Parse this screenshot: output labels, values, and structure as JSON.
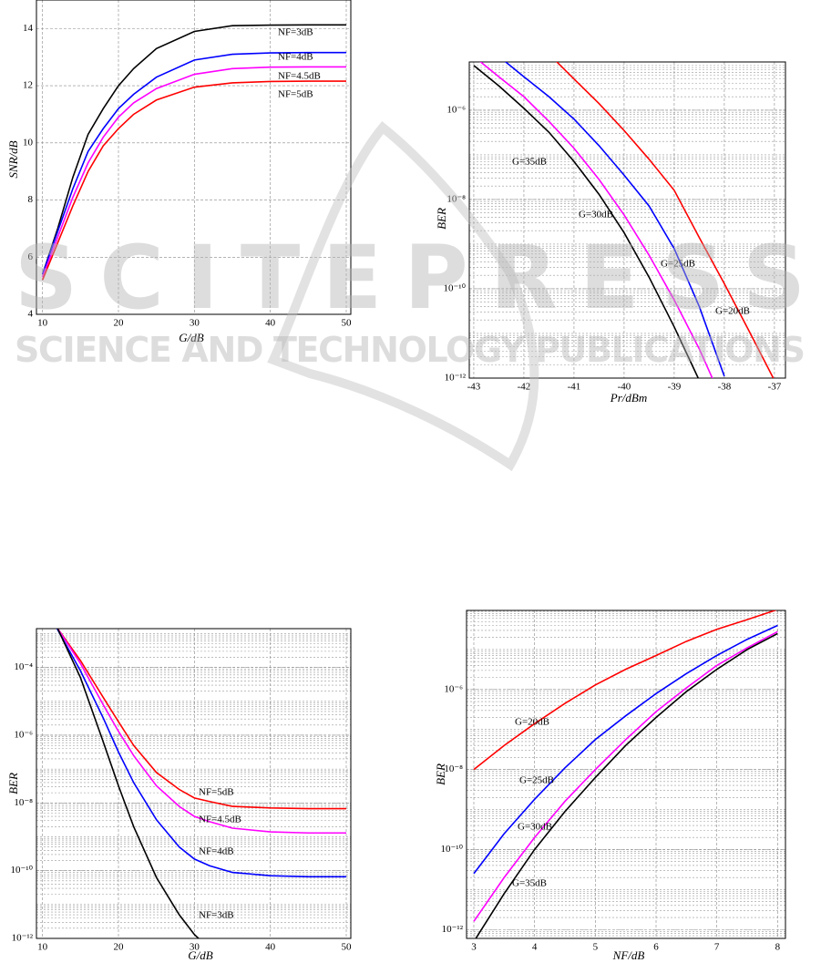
{
  "chart_data": [
    {
      "type": "line",
      "x_label": "G/dB",
      "y_label": "SNR/dB",
      "x": [
        10,
        12,
        14,
        16,
        18,
        20,
        22,
        25,
        30,
        35,
        40,
        45,
        50
      ],
      "xlim": [
        9.2,
        50.6
      ],
      "xticks": [
        10,
        20,
        30,
        40,
        50
      ],
      "ylim": [
        4,
        15
      ],
      "yticks": [
        4,
        6,
        8,
        10,
        12,
        14
      ],
      "grid": true,
      "log_y": false,
      "series": [
        {
          "name": "NF=3dB",
          "color": "#000000",
          "values": [
            5.4,
            7.0,
            8.8,
            10.3,
            11.2,
            12.0,
            12.6,
            13.3,
            13.9,
            14.1,
            14.12,
            14.13,
            14.13
          ]
        },
        {
          "name": "NF=4dB",
          "color": "#0000ff",
          "values": [
            5.4,
            6.9,
            8.4,
            9.7,
            10.5,
            11.2,
            11.7,
            12.3,
            12.9,
            13.1,
            13.15,
            13.16,
            13.16
          ]
        },
        {
          "name": "NF=4.5dB",
          "color": "#ff00ff",
          "values": [
            5.3,
            6.7,
            8.1,
            9.3,
            10.2,
            10.9,
            11.4,
            11.9,
            12.4,
            12.6,
            12.65,
            12.66,
            12.66
          ]
        },
        {
          "name": "NF=5dB",
          "color": "#ff0000",
          "values": [
            5.2,
            6.5,
            7.8,
            9.0,
            9.9,
            10.5,
            11.0,
            11.5,
            11.95,
            12.1,
            12.15,
            12.16,
            12.16
          ]
        }
      ]
    },
    {
      "type": "line",
      "x_label": "Pr/dBm",
      "y_label": "BER",
      "x": [
        -43,
        -42.5,
        -42,
        -41.5,
        -41,
        -40.5,
        -40,
        -39.5,
        -39,
        -38.5,
        -38,
        -37.5,
        -37
      ],
      "xlim": [
        -43.09,
        -36.78
      ],
      "xticks": [
        -43,
        -42,
        -41,
        -40,
        -39,
        -38,
        -37
      ],
      "ylim": [
        1e-12,
        1.2e-05
      ],
      "log_y": true,
      "grid": true,
      "yticks": [
        {
          "value": 1e-06,
          "label": "10⁻⁶"
        },
        {
          "value": 1e-08,
          "label": "10⁻⁸"
        },
        {
          "value": 1e-10,
          "label": "10⁻¹⁰"
        },
        {
          "value": 1e-12,
          "label": "10⁻¹²"
        }
      ],
      "series": [
        {
          "name": "G=35dB",
          "color": "#000000",
          "values": [
            1e-05,
            3.5e-06,
            1.1e-06,
            3.2e-07,
            7.1e-08,
            1.3e-08,
            1.8e-09,
            1.8e-10,
            1.4e-11,
            8.9e-13,
            null,
            null,
            null
          ]
        },
        {
          "name": "G=30dB",
          "color": "#ff00ff",
          "values": [
            1.6e-05,
            5.6e-06,
            2e-06,
            5.6e-07,
            1.4e-07,
            2.8e-08,
            4.5e-09,
            5.6e-10,
            5.6e-11,
            4.5e-12,
            2.5e-13,
            null,
            null
          ]
        },
        {
          "name": "G=25dB",
          "color": "#0000ff",
          "values": [
            null,
            1.6e-05,
            5.6e-06,
            2e-06,
            6.3e-07,
            1.6e-07,
            3.5e-08,
            7.1e-09,
            7.9e-10,
            4e-11,
            1.1e-12,
            null,
            null
          ]
        },
        {
          "name": "G=20dB",
          "color": "#ff0000",
          "values": [
            null,
            null,
            null,
            1.8e-05,
            5e-06,
            1.4e-06,
            3.5e-07,
            7.9e-08,
            1.6e-08,
            1.4e-09,
            1.3e-10,
            1.1e-11,
            8.9e-13
          ]
        }
      ]
    },
    {
      "type": "line",
      "x_label": "G/dB",
      "y_label": "BER",
      "x": [
        11,
        12,
        15,
        18,
        20,
        22,
        25,
        28,
        30,
        32,
        35,
        40,
        45,
        50
      ],
      "xlim": [
        9.2,
        50.6
      ],
      "xticks": [
        10,
        20,
        30,
        40,
        50
      ],
      "ylim": [
        1e-12,
        0.0014
      ],
      "log_y": true,
      "grid": true,
      "yticks": [
        {
          "value": 0.0001,
          "label": "10⁻⁴"
        },
        {
          "value": 1e-06,
          "label": "10⁻⁶"
        },
        {
          "value": 1e-08,
          "label": "10⁻⁸"
        },
        {
          "value": 1e-10,
          "label": "10⁻¹⁰"
        },
        {
          "value": 1e-12,
          "label": "10⁻¹²"
        }
      ],
      "series": [
        {
          "name": "NF=5dB",
          "color": "#ff0000",
          "values": [
            0.0035,
            0.0014,
            0.00016,
            1.3e-05,
            2.5e-06,
            5e-07,
            7.9e-08,
            2.5e-08,
            1.4e-08,
            1.1e-08,
            7.9e-09,
            7.1e-09,
            6.8e-09,
            6.8e-09
          ]
        },
        {
          "name": "NF=4.5dB",
          "color": "#ff00ff",
          "values": [
            0.0035,
            0.0014,
            0.00013,
            7.9e-06,
            1.3e-06,
            2.5e-07,
            3.2e-08,
            7.9e-09,
            4e-09,
            2.8e-09,
            1.8e-09,
            1.4e-09,
            1.3e-09,
            1.3e-09
          ]
        },
        {
          "name": "NF=4dB",
          "color": "#0000ff",
          "values": [
            0.0035,
            0.0013,
            7.9e-05,
            3.2e-06,
            3.2e-07,
            4e-08,
            3.2e-09,
            5e-10,
            2.2e-10,
            1.4e-10,
            8.9e-11,
            7.1e-11,
            6.6e-11,
            6.6e-11
          ]
        },
        {
          "name": "NF=3dB",
          "color": "#000000",
          "values": [
            0.004,
            0.0014,
            5e-05,
            6.3e-07,
            3.2e-08,
            2e-09,
            6.3e-11,
            5e-12,
            1.3e-12,
            5e-13,
            null,
            null,
            null,
            null
          ]
        }
      ]
    },
    {
      "type": "line",
      "x_label": "NF/dB",
      "y_label": "BER",
      "x": [
        3,
        3.5,
        4,
        4.5,
        5,
        5.5,
        6,
        6.5,
        7,
        7.5,
        8
      ],
      "xlim": [
        2.88,
        8.13
      ],
      "xticks": [
        3,
        4,
        5,
        6,
        7,
        8
      ],
      "ylim": [
        6e-13,
        9.5e-05
      ],
      "log_y": true,
      "grid": true,
      "yticks": [
        {
          "value": 1e-06,
          "label": "10⁻⁶"
        },
        {
          "value": 1e-08,
          "label": "10⁻⁸"
        },
        {
          "value": 1e-10,
          "label": "10⁻¹⁰"
        },
        {
          "value": 1e-12,
          "label": "10⁻¹²"
        }
      ],
      "series": [
        {
          "name": "G=20dB",
          "color": "#ff0000",
          "values": [
            1e-08,
            4e-08,
            1.4e-07,
            4.5e-07,
            1.3e-06,
            3.2e-06,
            7.1e-06,
            1.6e-05,
            3.2e-05,
            5.6e-05,
            0.0001
          ]
        },
        {
          "name": "G=25dB",
          "color": "#0000ff",
          "values": [
            2.5e-11,
            2.5e-10,
            1.8e-09,
            1.1e-08,
            5.6e-08,
            2.2e-07,
            7.9e-07,
            2.5e-06,
            7.1e-06,
            1.8e-05,
            4e-05
          ]
        },
        {
          "name": "G=30dB",
          "color": "#ff00ff",
          "values": [
            1.6e-12,
            2e-11,
            2e-10,
            1.6e-09,
            1e-08,
            5.6e-08,
            2.8e-07,
            1.1e-06,
            4e-06,
            1.1e-05,
            2.8e-05
          ]
        },
        {
          "name": "G=35dB",
          "color": "#000000",
          "values": [
            5e-13,
            7.9e-12,
            1e-10,
            8.9e-10,
            6.3e-09,
            4e-08,
            2e-07,
            8.9e-07,
            3.2e-06,
            1e-05,
            2.5e-05
          ]
        }
      ]
    }
  ],
  "watermark": {
    "title": "SCITEPRESS",
    "subtitle": "SCIENCE AND TECHNOLOGY PUBLICATIONS"
  }
}
